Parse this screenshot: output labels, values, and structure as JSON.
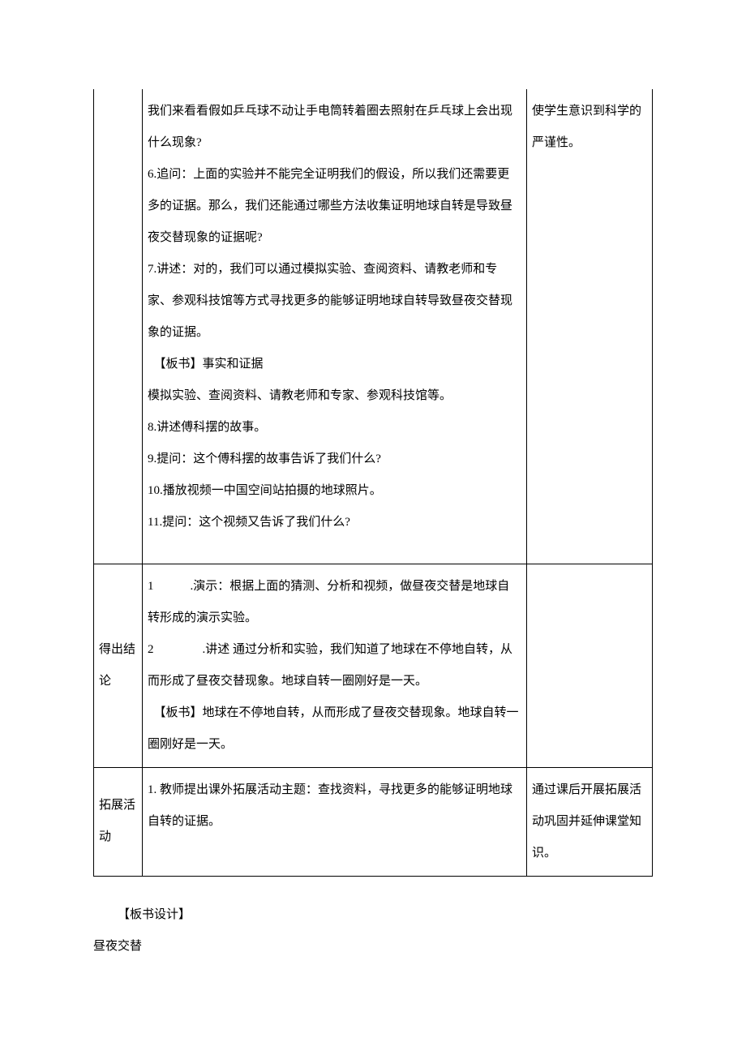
{
  "table": {
    "row1": {
      "col1": "",
      "col2_lines": [
        "我们来看看假如乒乓球不动让手电筒转着圈去照射在乒乓球上会出现什么现象?",
        "6.追问：上面的实验并不能完全证明我们的假设，所以我们还需要更多的证据。那么，我们还能通过哪些方法收集证明地球自转是导致昼夜交替现象的证据呢?",
        "7.讲述：对的，我们可以通过模拟实验、查阅资料、请教老师和专家、参观科技馆等方式寻找更多的能够证明地球自转导致昼夜交替现象的证据。",
        "　【板书】事实和证据",
        "模拟实验、查阅资料、请教老师和专家、参观科技馆等。",
        "8.讲述傅科摆的故事。",
        "9.提问：这个傅科摆的故事告诉了我们什么?",
        "10.播放视频一中国空间站拍摄的地球照片。",
        "11.提问：这个视频又告诉了我们什么?"
      ],
      "col3": "使学生意识到科学的严谨性。"
    },
    "row2": {
      "col1": "得出结论",
      "col2_lines": [
        "1　　　.演示：根据上面的猜测、分析和视频，做昼夜交替是地球自转形成的演示实验。",
        "2　　　　.讲述 通过分析和实验，我们知道了地球在不停地自转，从而形成了昼夜交替现象。地球自转一圈刚好是一天。",
        "　【板书】地球在不停地自转，从而形成了昼夜交替现象。地球自转一圈刚好是一天。"
      ],
      "col3": ""
    },
    "row3": {
      "col1": "拓展活动",
      "col2": "1. 教师提出课外拓展活动主题：查找资料，寻找更多的能够证明地球自转的证据。",
      "col3": "通过课后开展拓展活动巩固并延伸课堂知识。"
    }
  },
  "footer": {
    "line1": "【板书设计】",
    "line2": "昼夜交替"
  }
}
